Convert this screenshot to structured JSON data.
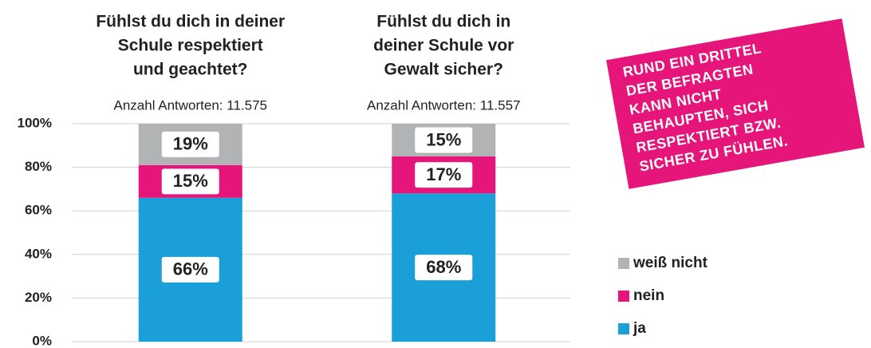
{
  "chart_data": {
    "type": "stacked_bar",
    "categories": [
      [
        "Fühlst du dich in deiner",
        "Schule respektiert",
        "und geachtet?"
      ],
      [
        "Fühlst du dich in",
        "deiner Schule vor",
        "Gewalt sicher?"
      ]
    ],
    "subtitles": [
      "Anzahl Antworten: 11.575",
      "Anzahl Antworten: 11.557"
    ],
    "series": [
      {
        "name": "ja",
        "color": "#1a9fd9",
        "values": [
          66,
          68
        ],
        "value_labels": [
          "66%",
          "68%"
        ]
      },
      {
        "name": "nein",
        "color": "#e5157a",
        "values": [
          15,
          17
        ],
        "value_labels": [
          "15%",
          "17%"
        ]
      },
      {
        "name": "weiß nicht",
        "color": "#b2b3b5",
        "values": [
          19,
          15
        ],
        "value_labels": [
          "19%",
          "15%"
        ]
      }
    ],
    "ylim": [
      0,
      100
    ],
    "yticks": [
      {
        "value": 0,
        "label": "0%"
      },
      {
        "value": 20,
        "label": "20%"
      },
      {
        "value": 40,
        "label": "40%"
      },
      {
        "value": 60,
        "label": "60%"
      },
      {
        "value": 80,
        "label": "80%"
      },
      {
        "value": 100,
        "label": "100%"
      }
    ],
    "grid": true,
    "legend_position": "right",
    "annotation": [
      "RUND EIN DRITTEL",
      "DER BEFRAGTEN",
      "KANN NICHT",
      "BEHAUPTEN, SICH",
      "RESPEKTIERT BZW.",
      "SICHER ZU FÜHLEN."
    ],
    "annotation_color": "#e5157a"
  }
}
